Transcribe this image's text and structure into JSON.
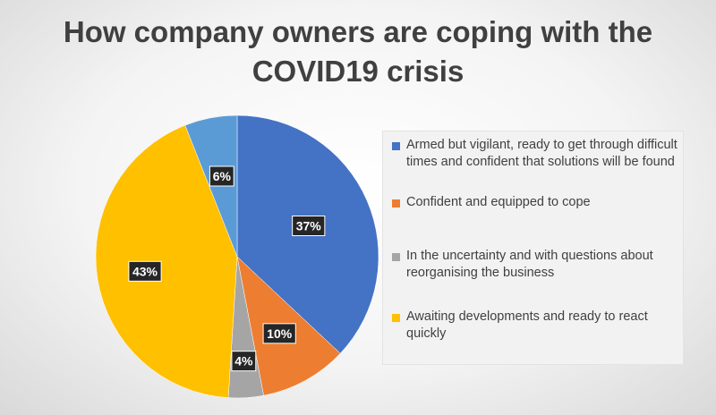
{
  "chart_data": {
    "type": "pie",
    "title_lines": [
      "How company owners are coping with the",
      "COVID19 crisis"
    ],
    "slices": [
      {
        "label": "Armed but vigilant, ready to get through difficult times and confident that solutions will be found",
        "value": 37,
        "display": "37%",
        "color": "#4472c4"
      },
      {
        "label": "Confident and equipped to cope",
        "value": 10,
        "display": "10%",
        "color": "#ed7d31"
      },
      {
        "label": "In the uncertainty and with questions about reorganising the business",
        "value": 4,
        "display": "4%",
        "color": "#a5a5a5"
      },
      {
        "label": "Awaiting developments and ready to react quickly",
        "value": 43,
        "display": "43%",
        "color": "#ffc000"
      },
      {
        "label": "",
        "value": 6,
        "display": "6%",
        "color": "#5b9bd5"
      }
    ],
    "legend_position": "right",
    "start_angle": "12 o'clock",
    "direction": "clockwise"
  }
}
